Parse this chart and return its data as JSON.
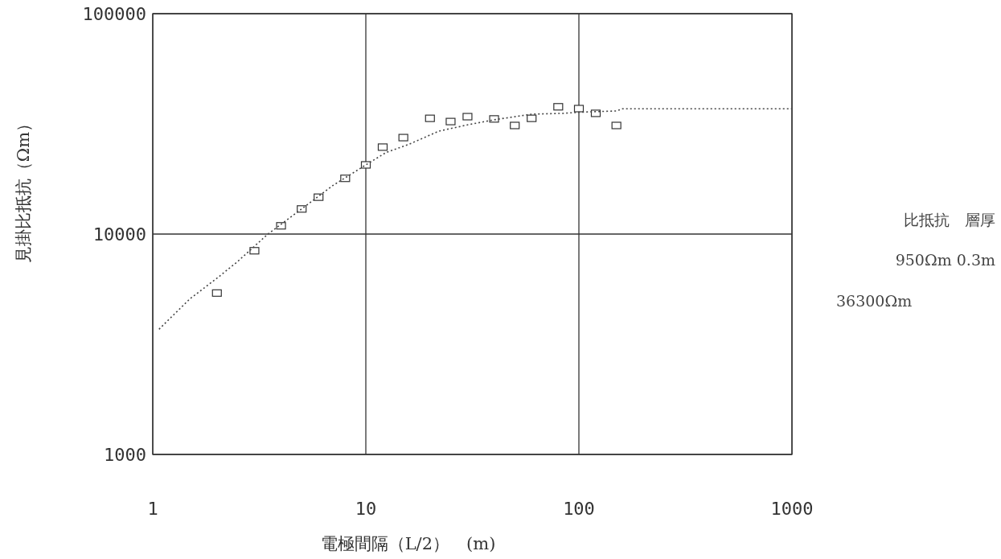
{
  "chart_data": {
    "type": "scatter",
    "xlabel": "電極間隔（L/2）　(m)",
    "ylabel": "見掛比抵抗（Ωm）",
    "log": "xy",
    "grid": true,
    "xlim": [
      1,
      1000
    ],
    "xticks": [
      1,
      10,
      100,
      1000
    ],
    "ylim": [
      1000,
      100000
    ],
    "yticks": [
      1000,
      10000,
      100000
    ],
    "series": [
      {
        "marker": "square",
        "color": "#333333",
        "x": [
          2,
          3,
          4,
          5,
          6,
          8,
          10,
          12,
          15,
          20,
          25,
          30,
          40,
          50,
          60,
          80,
          100,
          120,
          150
        ],
        "values": [
          5400,
          8400,
          10900,
          13000,
          14700,
          17900,
          20600,
          24800,
          27400,
          33500,
          32400,
          34100,
          33300,
          31100,
          33500,
          37800,
          37100,
          35300,
          31100
        ]
      },
      {
        "type": "line",
        "line_style": "dotted",
        "color": "#444444",
        "x": [
          1.07,
          1.5,
          2,
          2.5,
          3.47,
          5,
          7,
          10,
          12.4,
          16,
          22,
          30,
          40,
          60,
          84.5,
          100,
          150,
          160,
          1000
        ],
        "values": [
          3700,
          5100,
          6300,
          7500,
          10000,
          13000,
          16600,
          20600,
          23400,
          25600,
          29300,
          31300,
          33000,
          35000,
          35300,
          35700,
          36200,
          37000,
          37000
        ]
      }
    ],
    "annotations": [
      "比抵抗　層厚",
      "950Ωm 0.3m",
      "36300Ωm"
    ]
  }
}
